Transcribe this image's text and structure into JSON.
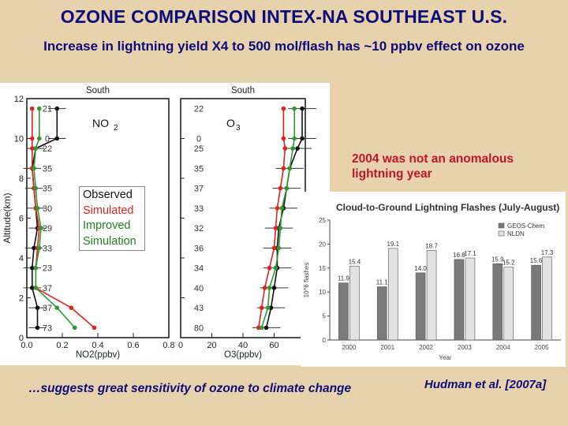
{
  "slide": {
    "title": "OZONE COMPARISON INTEX-NA SOUTHEAST U.S.",
    "subtitle": "Increase in lightning yield X4 to 500 mol/flash has ~10 ppbv effect on ozone",
    "annotation": "2004 was not an anomalous lightning year",
    "footer": "…suggests great sensitivity  of ozone to climate change",
    "citation": "Hudman et al. [2007a]"
  },
  "colors": {
    "title": "#0c0c7a",
    "observed": "#111111",
    "simulated": "#e0211e",
    "improved": "#2e9a2e",
    "annotation": "#c0142a"
  },
  "legend": {
    "observed": "Observed",
    "simulated": "Simulated",
    "improved": "Improved Simulation",
    "improved_line1": "Improved",
    "improved_line2": "Simulation"
  },
  "chart_data": [
    {
      "type": "line",
      "panel_title": "South",
      "species_label": "NO2",
      "xlabel": "NO2(ppbv)",
      "ylabel": "Altitude(km)",
      "xlim": [
        0.0,
        0.8
      ],
      "ylim": [
        0,
        12
      ],
      "xticks": [
        0.0,
        0.2,
        0.4,
        0.6,
        0.8
      ],
      "yticks": [
        0,
        2,
        4,
        6,
        8,
        10,
        12
      ],
      "altitude": [
        11.5,
        10,
        9.5,
        8.5,
        7.5,
        6.5,
        5.5,
        4.5,
        3.5,
        2.5,
        1.5,
        0.5
      ],
      "sample_counts": [
        21,
        0,
        22,
        35,
        35,
        30,
        29,
        33,
        23,
        37,
        37,
        73
      ],
      "series": [
        {
          "name": "Observed",
          "values": [
            0.17,
            0.17,
            0.05,
            0.03,
            0.04,
            0.05,
            0.06,
            0.04,
            0.03,
            0.03,
            0.06,
            0.06
          ]
        },
        {
          "name": "Simulated",
          "values": [
            0.03,
            0.03,
            0.03,
            0.03,
            0.04,
            0.05,
            0.07,
            0.06,
            0.05,
            0.05,
            0.25,
            0.38
          ]
        },
        {
          "name": "Improved Simulation",
          "values": [
            0.07,
            0.07,
            0.05,
            0.04,
            0.05,
            0.06,
            0.08,
            0.07,
            0.05,
            0.05,
            0.17,
            0.27
          ]
        }
      ]
    },
    {
      "type": "line",
      "panel_title": "South",
      "species_label": "O3",
      "xlabel": "O3(ppbv)",
      "xlim": [
        0,
        80
      ],
      "ylim": [
        0,
        12
      ],
      "xticks": [
        0,
        20,
        40,
        60,
        80
      ],
      "altitude": [
        11.5,
        10,
        9.5,
        8.5,
        7.5,
        6.5,
        5.5,
        4.5,
        3.5,
        2.5,
        1.5,
        0.5
      ],
      "sample_counts": [
        22,
        0,
        25,
        35,
        37,
        33,
        32,
        36,
        34,
        40,
        43,
        80
      ],
      "series": [
        {
          "name": "Observed",
          "values": [
            78,
            78,
            75,
            70,
            68,
            66,
            63,
            62,
            62,
            60,
            58,
            55
          ]
        },
        {
          "name": "Simulated",
          "values": [
            66,
            66,
            67,
            66,
            64,
            62,
            61,
            60,
            57,
            54,
            52,
            50
          ]
        },
        {
          "name": "Improved Simulation",
          "values": [
            73,
            73,
            72,
            70,
            68,
            65,
            64,
            63,
            61,
            57,
            56,
            52
          ]
        }
      ]
    },
    {
      "type": "bar",
      "title": "Cloud-to-Ground Lightning Flashes (July-August)",
      "xlabel": "Year",
      "ylabel": "10^6 flashes",
      "categories": [
        "2000",
        "2001",
        "2002",
        "2003",
        "2004",
        "2005"
      ],
      "ylim": [
        0,
        25
      ],
      "yticks": [
        0,
        5,
        10,
        15,
        20,
        25
      ],
      "legend_position": "top-right",
      "series": [
        {
          "name": "GEOS-Chem",
          "values": [
            11.9,
            11.1,
            14.0,
            16.8,
            15.9,
            15.6
          ]
        },
        {
          "name": "NLDN",
          "values": [
            15.4,
            19.1,
            18.7,
            17.1,
            15.2,
            17.3
          ]
        }
      ]
    }
  ]
}
